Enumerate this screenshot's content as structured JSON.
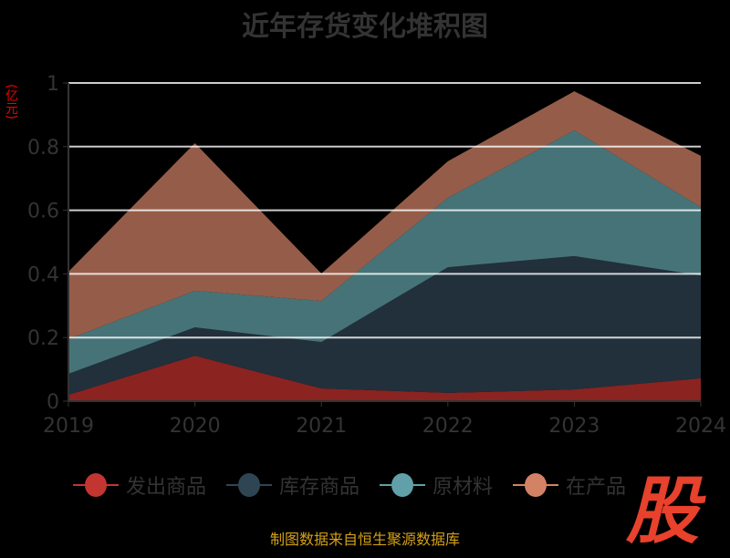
{
  "chart_data": {
    "type": "area",
    "stacked": true,
    "title": "近年存货变化堆积图",
    "ylabel": "(亿元)",
    "categories": [
      "2019",
      "2020",
      "2021",
      "2022",
      "2023",
      "2024"
    ],
    "ylim": [
      0,
      1
    ],
    "yticks": [
      "0",
      "0.2",
      "0.4",
      "0.6",
      "0.8",
      "1"
    ],
    "grid": true,
    "legend_position": "bottom",
    "series": [
      {
        "name": "发出商品",
        "values": [
          0.02,
          0.143,
          0.04,
          0.026,
          0.037,
          0.072
        ],
        "color": "#c23531",
        "area_color": "#8b2321"
      },
      {
        "name": "库存商品",
        "values": [
          0.066,
          0.089,
          0.146,
          0.395,
          0.419,
          0.323
        ],
        "color": "#2f4554",
        "area_color": "#21303b"
      },
      {
        "name": "原材料",
        "values": [
          0.109,
          0.115,
          0.129,
          0.218,
          0.395,
          0.215
        ],
        "color": "#61a0a8",
        "area_color": "#467378"
      },
      {
        "name": "在产品",
        "values": [
          0.212,
          0.464,
          0.086,
          0.115,
          0.123,
          0.161
        ],
        "color": "#d48265",
        "area_color": "#955d49"
      }
    ]
  },
  "source": "制图数据来自恒生聚源数据库",
  "logo_text": "股"
}
